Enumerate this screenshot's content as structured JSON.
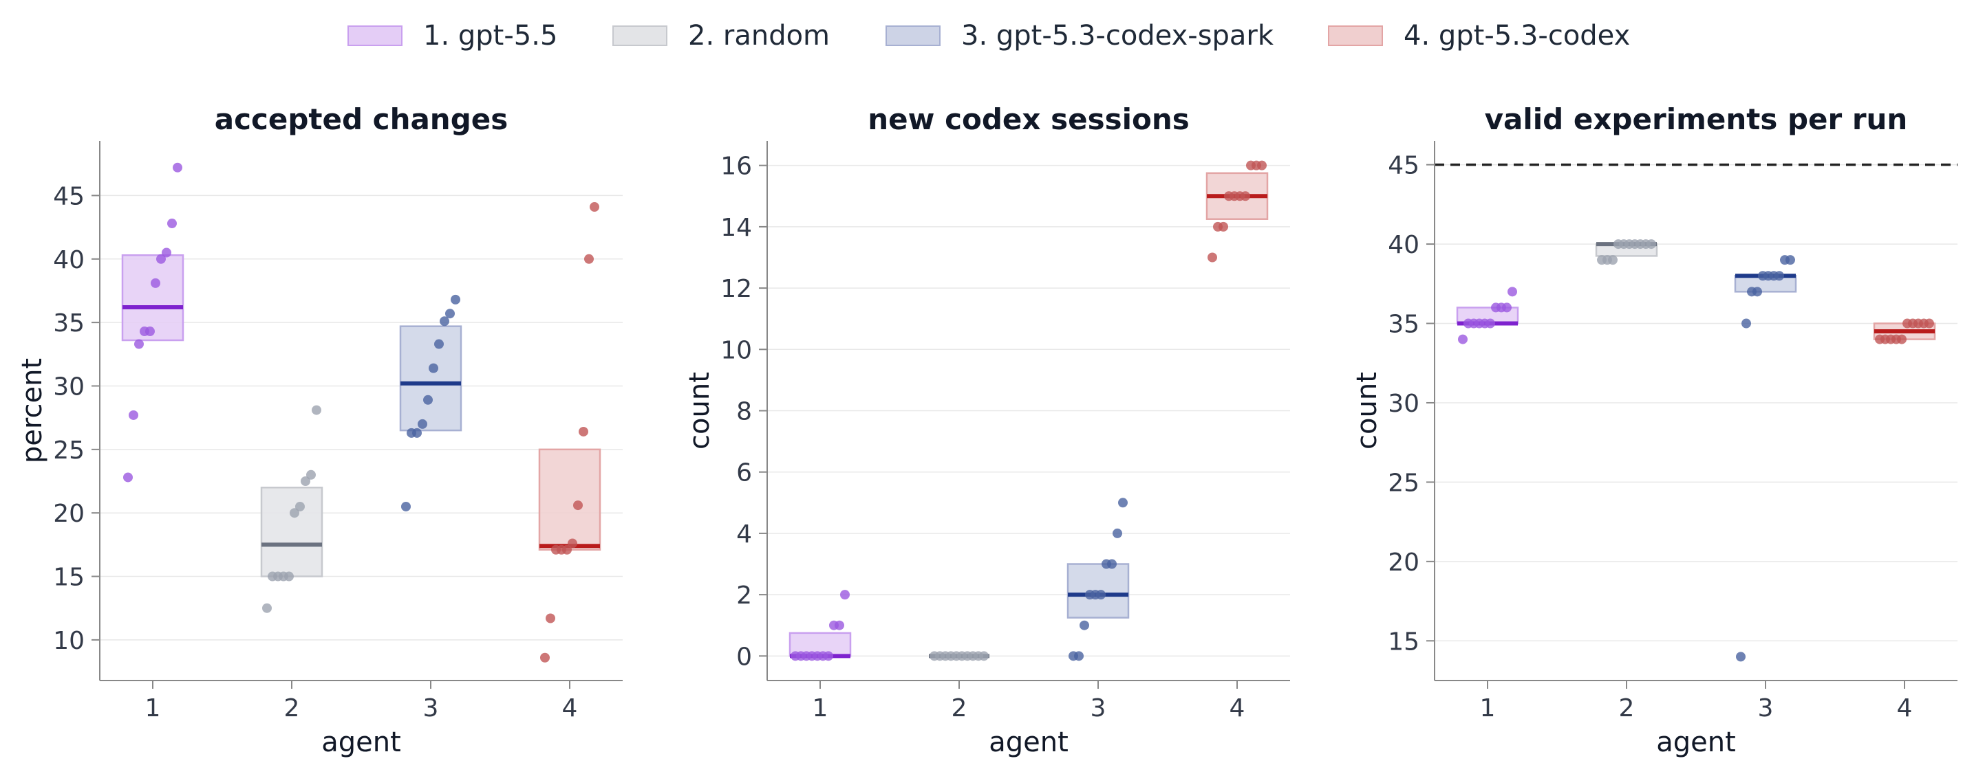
{
  "legend": [
    {
      "label": "1. gpt-5.5",
      "color": "#8a2be2"
    },
    {
      "label": "2. random",
      "color": "#6b7280"
    },
    {
      "label": "3. gpt-5.3-codex-spark",
      "color": "#1e3a8a"
    },
    {
      "label": "4. gpt-5.3-codex",
      "color": "#b91c1c"
    }
  ],
  "colors": {
    "median": [
      "#7e22ce",
      "#6b7280",
      "#1e3a8a",
      "#b91c1c"
    ],
    "fill": [
      "#e4cdf6",
      "#e3e4e7",
      "#cdd3e6",
      "#f0cfcf"
    ],
    "stroke": [
      "#c9a0ef",
      "#c7c9ce",
      "#a7b0d2",
      "#e3a5a5"
    ],
    "dots": [
      "#9b59e0",
      "#9ca3af",
      "#4a63a0",
      "#c05555"
    ],
    "axis": "#888888",
    "grid": "#e8e8e8",
    "text": "#333a48",
    "title": "#111827"
  },
  "chart_data": [
    {
      "type": "scatter",
      "title": "accepted changes",
      "xlabel": "agent",
      "ylabel": "percent",
      "categories": [
        "1",
        "2",
        "3",
        "4"
      ],
      "ylim": [
        6.8,
        49.3
      ],
      "yticks": [
        10,
        15,
        20,
        25,
        30,
        35,
        40,
        45
      ],
      "grid": true,
      "series": [
        {
          "name": "1. gpt-5.5",
          "median": 36.2,
          "q1": 33.6,
          "q3": 40.3,
          "values": [
            22.8,
            27.7,
            33.3,
            34.3,
            34.3,
            38.1,
            40.0,
            40.5,
            42.8,
            47.2
          ]
        },
        {
          "name": "2. random",
          "median": 17.5,
          "q1": 15.0,
          "q3": 22.0,
          "values": [
            12.5,
            15.0,
            15.0,
            15.0,
            15.0,
            20.0,
            20.5,
            22.5,
            23.0,
            28.1
          ]
        },
        {
          "name": "3. gpt-5.3-codex-spark",
          "median": 30.2,
          "q1": 26.5,
          "q3": 34.7,
          "values": [
            20.5,
            26.3,
            26.3,
            27.0,
            28.9,
            31.4,
            33.3,
            35.1,
            35.7,
            36.8
          ]
        },
        {
          "name": "4. gpt-5.3-codex",
          "median": 17.4,
          "q1": 17.1,
          "q3": 25.0,
          "values": [
            8.6,
            11.7,
            17.1,
            17.1,
            17.1,
            17.6,
            20.6,
            26.4,
            40.0,
            44.1
          ]
        }
      ]
    },
    {
      "type": "scatter",
      "title": "new codex sessions",
      "xlabel": "agent",
      "ylabel": "count",
      "categories": [
        "1",
        "2",
        "3",
        "4"
      ],
      "ylim": [
        -0.8,
        16.8
      ],
      "yticks": [
        0,
        2,
        4,
        6,
        8,
        10,
        12,
        14,
        16
      ],
      "grid": true,
      "series": [
        {
          "name": "1. gpt-5.5",
          "median": 0,
          "q1": 0,
          "q3": 0.75,
          "values": [
            0,
            0,
            0,
            0,
            0,
            0,
            0,
            1,
            1,
            2
          ]
        },
        {
          "name": "2. random",
          "median": 0,
          "q1": 0,
          "q3": 0,
          "values": [
            0,
            0,
            0,
            0,
            0,
            0,
            0,
            0,
            0,
            0
          ]
        },
        {
          "name": "3. gpt-5.3-codex-spark",
          "median": 2,
          "q1": 1.25,
          "q3": 3,
          "values": [
            0,
            0,
            1,
            2,
            2,
            2,
            3,
            3,
            4,
            5
          ]
        },
        {
          "name": "4. gpt-5.3-codex",
          "median": 15,
          "q1": 14.25,
          "q3": 15.75,
          "values": [
            13,
            14,
            14,
            15,
            15,
            15,
            15,
            16,
            16,
            16
          ]
        }
      ]
    },
    {
      "type": "scatter",
      "title": "valid experiments per run",
      "xlabel": "agent",
      "ylabel": "count",
      "categories": [
        "1",
        "2",
        "3",
        "4"
      ],
      "ylim": [
        12.5,
        46.5
      ],
      "yticks": [
        15,
        20,
        25,
        30,
        35,
        40,
        45
      ],
      "grid": true,
      "reference_line": 45,
      "series": [
        {
          "name": "1. gpt-5.5",
          "median": 35,
          "q1": 35,
          "q3": 36,
          "values": [
            34,
            35,
            35,
            35,
            35,
            35,
            36,
            36,
            36,
            37
          ]
        },
        {
          "name": "2. random",
          "median": 40,
          "q1": 39.25,
          "q3": 40,
          "values": [
            39,
            39,
            39,
            40,
            40,
            40,
            40,
            40,
            40,
            40
          ]
        },
        {
          "name": "3. gpt-5.3-codex-spark",
          "median": 38,
          "q1": 37,
          "q3": 38,
          "values": [
            14,
            35,
            37,
            37,
            38,
            38,
            38,
            38,
            39,
            39
          ]
        },
        {
          "name": "4. gpt-5.3-codex",
          "median": 34.5,
          "q1": 34,
          "q3": 35,
          "values": [
            34,
            34,
            34,
            34,
            34,
            35,
            35,
            35,
            35,
            35
          ]
        }
      ]
    }
  ]
}
